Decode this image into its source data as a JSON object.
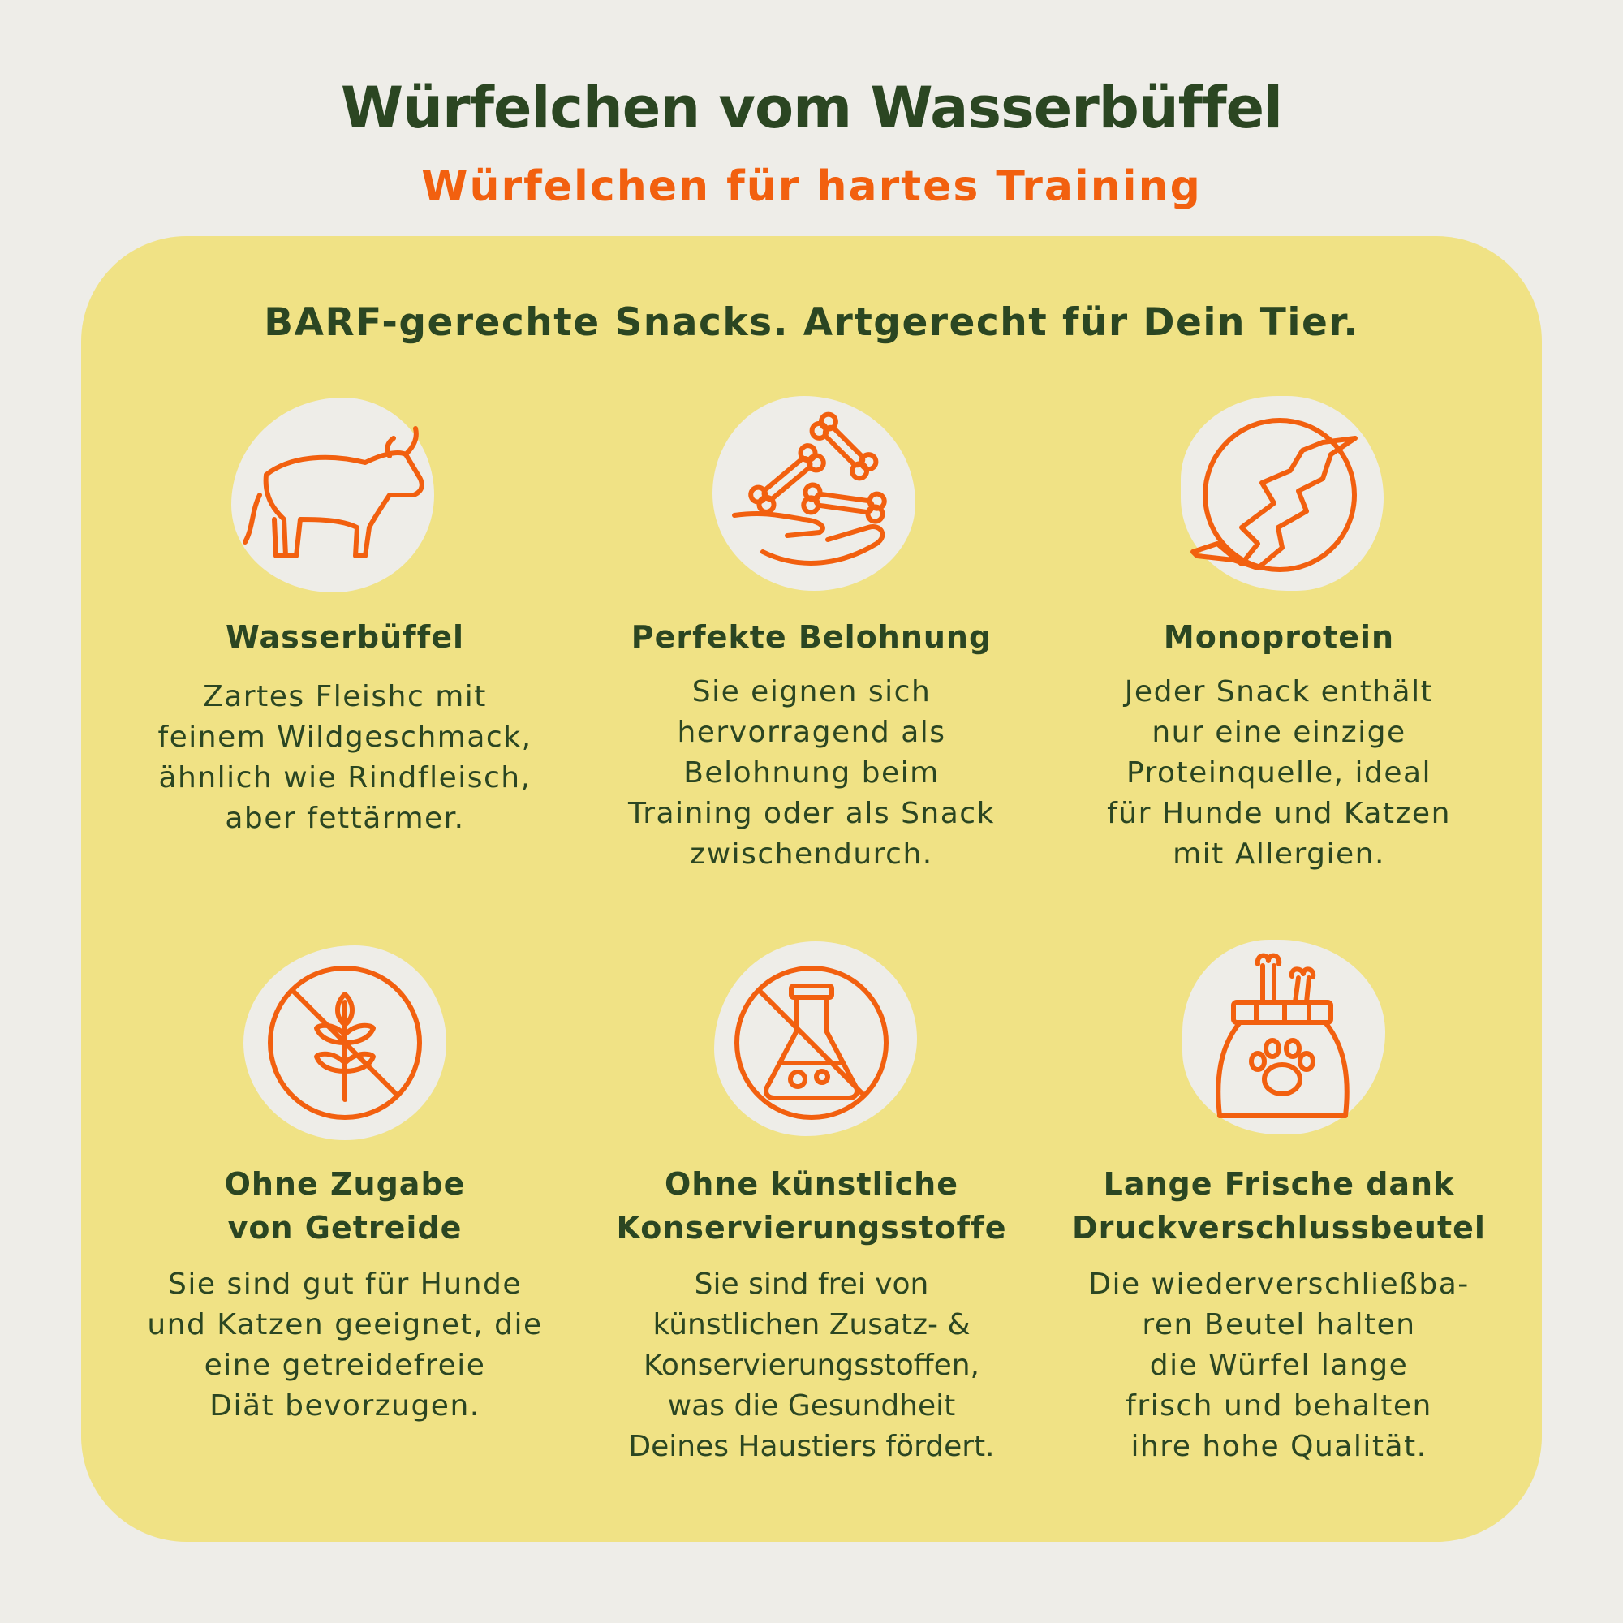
{
  "header": {
    "title": "Würfelchen vom Wasserbüffel",
    "subtitle": "Würfelchen für hartes Training"
  },
  "panel": {
    "heading": "BARF-gerechte Snacks. Artgerecht für Dein Tier."
  },
  "colors": {
    "background": "#eeede8",
    "panel": "#f0e285",
    "text": "#2b4622",
    "accent": "#f2600f"
  },
  "features": [
    {
      "icon": "water-buffalo-icon",
      "title": [
        "Wasserbüffel"
      ],
      "body": [
        "Zartes Fleishc mit",
        "feinem Wildgeschmack,",
        "ähnlich wie Rindfleisch,",
        "aber fettärmer."
      ]
    },
    {
      "icon": "hand-with-bones-icon",
      "title": [
        "Perfekte Belohnung"
      ],
      "body": [
        "Sie eignen sich",
        "hervorragend als",
        "Belohnung beim",
        "Training oder als Snack",
        "zwischendurch."
      ]
    },
    {
      "icon": "single-protein-icon",
      "title": [
        "Monoprotein"
      ],
      "body": [
        "Jeder Snack enthält",
        "nur eine einzige",
        "Proteinquelle, ideal",
        "für Hunde und Katzen",
        "mit Allergien."
      ]
    },
    {
      "icon": "grain-free-icon",
      "title": [
        "Ohne Zugabe",
        "von Getreide"
      ],
      "body": [
        "Sie sind gut für Hunde",
        "und Katzen geeignet, die",
        "eine getreidefreie",
        "Diät bevorzugen."
      ]
    },
    {
      "icon": "no-preservatives-icon",
      "title": [
        "Ohne künstliche",
        "Konservierungsstoffe"
      ],
      "body": [
        "Sie sind frei von",
        "künstlichen Zusatz- &",
        "Konservierungsstoffen,",
        "was die Gesundheit",
        "Deines Haustiers fördert."
      ]
    },
    {
      "icon": "resealable-bag-icon",
      "title": [
        "Lange Frische dank",
        "Druckverschlussbeutel"
      ],
      "body": [
        "Die wiederverschließba-",
        "ren Beutel halten",
        "die Würfel lange",
        "frisch und behalten",
        "ihre hohe Qualität."
      ]
    }
  ]
}
